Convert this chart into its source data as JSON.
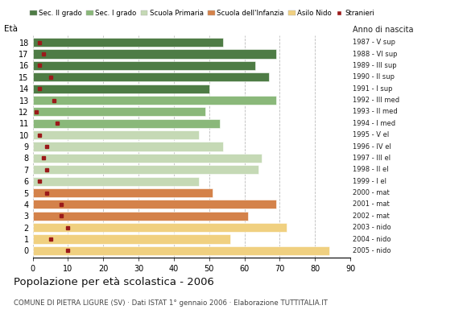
{
  "ages": [
    18,
    17,
    16,
    15,
    14,
    13,
    12,
    11,
    10,
    9,
    8,
    7,
    6,
    5,
    4,
    3,
    2,
    1,
    0
  ],
  "anno_nascita": [
    "1987 - V sup",
    "1988 - VI sup",
    "1989 - III sup",
    "1990 - II sup",
    "1991 - I sup",
    "1992 - III med",
    "1993 - II med",
    "1994 - I med",
    "1995 - V el",
    "1996 - IV el",
    "1997 - III el",
    "1998 - II el",
    "1999 - I el",
    "2000 - mat",
    "2001 - mat",
    "2002 - mat",
    "2003 - nido",
    "2004 - nido",
    "2005 - nido"
  ],
  "bar_values": [
    54,
    69,
    63,
    67,
    50,
    69,
    49,
    53,
    47,
    54,
    65,
    64,
    47,
    51,
    69,
    61,
    72,
    56,
    84
  ],
  "stranieri": [
    2,
    3,
    2,
    5,
    2,
    6,
    1,
    7,
    2,
    4,
    3,
    4,
    2,
    4,
    8,
    8,
    10,
    5,
    10
  ],
  "bar_colors": [
    "#4e7c45",
    "#4e7c45",
    "#4e7c45",
    "#4e7c45",
    "#4e7c45",
    "#8ab87a",
    "#8ab87a",
    "#8ab87a",
    "#c5d9b5",
    "#c5d9b5",
    "#c5d9b5",
    "#c5d9b5",
    "#c5d9b5",
    "#d4824a",
    "#d4824a",
    "#d4824a",
    "#f0d080",
    "#f0d080",
    "#f0d080"
  ],
  "legend_labels": [
    "Sec. II grado",
    "Sec. I grado",
    "Scuola Primaria",
    "Scuola dell'Infanzia",
    "Asilo Nido",
    "Stranieri"
  ],
  "legend_colors": [
    "#4e7c45",
    "#8ab87a",
    "#c5d9b5",
    "#d4824a",
    "#f0d080",
    "#9b1a1a"
  ],
  "title": "Popolazione per età scolastica - 2006",
  "subtitle": "COMUNE DI PIETRA LIGURE (SV) · Dati ISTAT 1° gennaio 2006 · Elaborazione TUTTITALIA.IT",
  "eta_label": "Età",
  "anno_label": "Anno di nascita",
  "xlim": [
    0,
    90
  ],
  "xticks": [
    0,
    10,
    20,
    30,
    40,
    50,
    60,
    70,
    80,
    90
  ],
  "stranieri_color": "#9b1a1a",
  "background_color": "#ffffff",
  "bar_height": 0.78,
  "grid_color": "#bbbbbb"
}
